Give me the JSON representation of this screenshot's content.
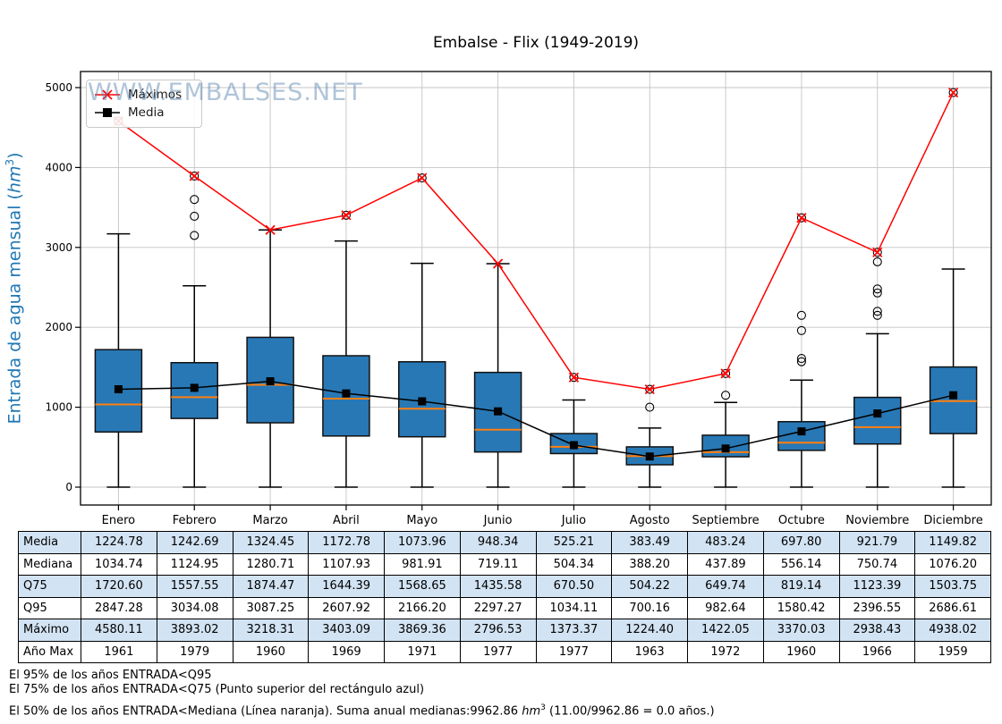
{
  "title": "Embalse - Flix (1949-2019)",
  "watermark": "WWW.EMBALSES.NET",
  "y_axis": {
    "label_prefix": "Entrada de agua mensual (",
    "label_unit": "hm",
    "label_sup": "3",
    "label_suffix": ")",
    "ticks": [
      0,
      1000,
      2000,
      3000,
      4000,
      5000
    ]
  },
  "legend": {
    "maximos": "Máximos",
    "media": "Media"
  },
  "chart_data": {
    "type": "boxplot",
    "title": "Embalse - Flix (1949-2019)",
    "ylabel": "Entrada de agua mensual (hm3)",
    "ylim": [
      0,
      5000
    ],
    "grid": true,
    "legend_position": "upper left",
    "categories": [
      "Enero",
      "Febrero",
      "Marzo",
      "Abril",
      "Mayo",
      "Junio",
      "Julio",
      "Agosto",
      "Septiembre",
      "Octubre",
      "Noviembre",
      "Diciembre"
    ],
    "series": [
      {
        "name": "Máximos",
        "type": "line",
        "color": "#ff0000",
        "marker": "x",
        "values": [
          4580.11,
          3893.02,
          3218.31,
          3403.09,
          3869.36,
          2796.53,
          1373.37,
          1224.4,
          1422.05,
          3370.03,
          2938.43,
          4938.02
        ]
      },
      {
        "name": "Media",
        "type": "line",
        "color": "#000000",
        "marker": "square",
        "values": [
          1224.78,
          1242.69,
          1324.45,
          1172.78,
          1073.96,
          948.34,
          525.21,
          383.49,
          483.24,
          697.8,
          921.79,
          1149.82
        ]
      }
    ],
    "series_map": {
      "media": [
        1224.78,
        1242.69,
        1324.45,
        1172.78,
        1073.96,
        948.34,
        525.21,
        383.49,
        483.24,
        697.8,
        921.79,
        1149.82
      ],
      "mediana": [
        1034.74,
        1124.95,
        1280.71,
        1107.93,
        981.91,
        719.11,
        504.34,
        388.2,
        437.89,
        556.14,
        750.74,
        1076.2
      ],
      "q75": [
        1720.6,
        1557.55,
        1874.47,
        1644.39,
        1568.65,
        1435.58,
        670.5,
        504.22,
        649.74,
        819.14,
        1123.39,
        1503.75
      ],
      "q95": [
        2847.28,
        3034.08,
        3087.25,
        2607.92,
        2166.2,
        2297.27,
        1034.11,
        700.16,
        982.64,
        1580.42,
        2396.55,
        2686.61
      ],
      "maximo": [
        4580.11,
        3893.02,
        3218.31,
        3403.09,
        3869.36,
        2796.53,
        1373.37,
        1224.4,
        1422.05,
        3370.03,
        2938.43,
        4938.02
      ],
      "anio_max": [
        1961,
        1979,
        1960,
        1969,
        1971,
        1977,
        1977,
        1963,
        1972,
        1960,
        1966,
        1959
      ]
    },
    "boxes": {
      "median": [
        1034.74,
        1124.95,
        1280.71,
        1107.93,
        981.91,
        719.11,
        504.34,
        388.2,
        437.89,
        556.14,
        750.74,
        1076.2
      ],
      "q75": [
        1720.6,
        1557.55,
        1874.47,
        1644.39,
        1568.65,
        1435.58,
        670.5,
        504.22,
        649.74,
        819.14,
        1123.39,
        1503.75
      ],
      "q25_est": [
        690,
        860,
        805,
        640,
        630,
        440,
        420,
        280,
        380,
        460,
        540,
        670
      ],
      "whisker_low_est": [
        0,
        0,
        0,
        0,
        0,
        0,
        0,
        0,
        0,
        0,
        0,
        0
      ],
      "whisker_high_est": [
        3170,
        2520,
        3218.31,
        3080,
        2800,
        2796.53,
        1090,
        740,
        1060,
        1340,
        1920,
        2730
      ],
      "outliers_est": [
        [
          4580.11
        ],
        [
          3893.02,
          3600,
          3390,
          3150
        ],
        [],
        [
          3403.09
        ],
        [
          3869.36
        ],
        [],
        [
          1373.37
        ],
        [
          1224.4,
          1000
        ],
        [
          1422.05,
          1150
        ],
        [
          3370.03,
          2150,
          1960,
          1610,
          1570
        ],
        [
          2938.43,
          2820,
          2480,
          2430,
          2200,
          2150
        ],
        [
          4938.02
        ]
      ],
      "box_fill": "#2878b5",
      "box_edge": "#111111",
      "median_color": "#ff7f0e"
    }
  },
  "table": {
    "columns": [
      "Enero",
      "Febrero",
      "Marzo",
      "Abril",
      "Mayo",
      "Junio",
      "Julio",
      "Agosto",
      "Septiembre",
      "Octubre",
      "Noviembre",
      "Diciembre"
    ],
    "rows": [
      {
        "label": "Media",
        "key": "media",
        "decimals": 2
      },
      {
        "label": "Mediana",
        "key": "mediana",
        "decimals": 2
      },
      {
        "label": "Q75",
        "key": "q75",
        "decimals": 2
      },
      {
        "label": "Q95",
        "key": "q95",
        "decimals": 2
      },
      {
        "label": "Máximo",
        "key": "maximo",
        "decimals": 2
      },
      {
        "label": "Año Max",
        "key": "anio_max",
        "decimals": 0
      }
    ],
    "alt_row_bg": "#d2e3f3"
  },
  "footnotes": {
    "line1": "El 95% de los años ENTRADA<Q95",
    "line2": "El 75% de los años ENTRADA<Q75 (Punto superior del rectángulo azul)",
    "line3_a": "El 50% de los años ENTRADA<Mediana (Línea naranja). Suma anual medianas:9962.86 ",
    "line3_hm": "hm",
    "line3_sup": "3",
    "line3_b": " (11.00/9962.86 = 0.0 años.)"
  }
}
